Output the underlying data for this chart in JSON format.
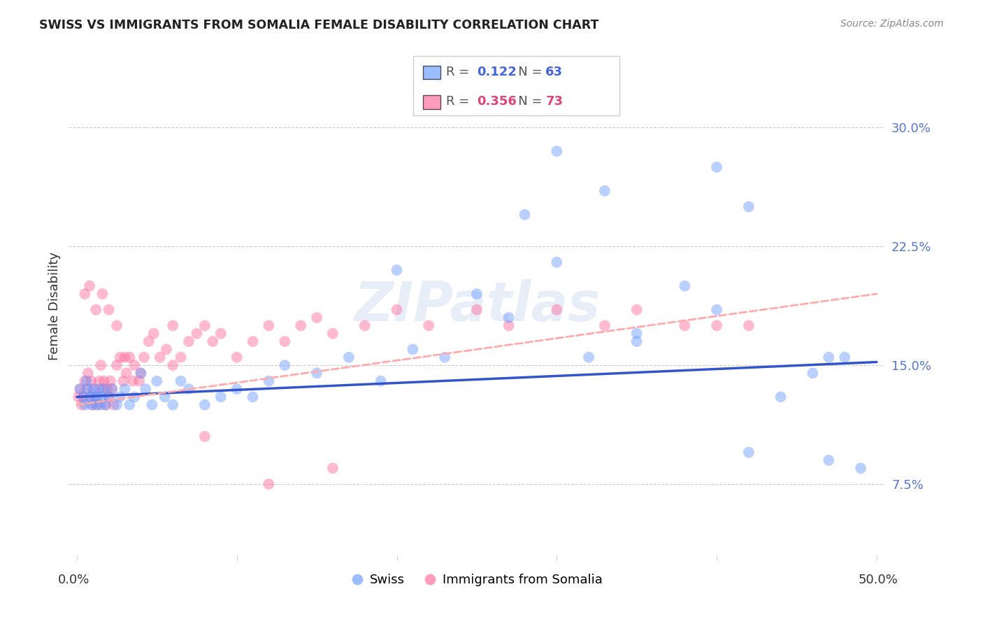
{
  "title": "SWISS VS IMMIGRANTS FROM SOMALIA FEMALE DISABILITY CORRELATION CHART",
  "source": "Source: ZipAtlas.com",
  "ylabel": "Female Disability",
  "ytick_values": [
    0.075,
    0.15,
    0.225,
    0.3
  ],
  "xlim": [
    0.0,
    0.5
  ],
  "ylim": [
    0.03,
    0.345
  ],
  "legend_swiss_R": "0.122",
  "legend_swiss_N": "63",
  "legend_somalia_R": "0.356",
  "legend_somalia_N": "73",
  "swiss_color": "#6699ff",
  "somalia_color": "#ff6699",
  "swiss_line_color": "#3355cc",
  "somalia_line_color": "#ffaaaa",
  "watermark": "ZIPatlas",
  "swiss_scatter_x": [
    0.002,
    0.004,
    0.005,
    0.006,
    0.007,
    0.008,
    0.009,
    0.01,
    0.011,
    0.012,
    0.013,
    0.014,
    0.015,
    0.016,
    0.017,
    0.018,
    0.02,
    0.022,
    0.025,
    0.027,
    0.03,
    0.033,
    0.036,
    0.04,
    0.043,
    0.047,
    0.05,
    0.055,
    0.06,
    0.065,
    0.07,
    0.08,
    0.09,
    0.1,
    0.11,
    0.12,
    0.13,
    0.15,
    0.17,
    0.19,
    0.21,
    0.23,
    0.25,
    0.27,
    0.3,
    0.32,
    0.35,
    0.38,
    0.4,
    0.42,
    0.44,
    0.46,
    0.48,
    0.33,
    0.2,
    0.28,
    0.35,
    0.42,
    0.47,
    0.49,
    0.3,
    0.4,
    0.47
  ],
  "swiss_scatter_y": [
    0.135,
    0.13,
    0.125,
    0.14,
    0.135,
    0.13,
    0.125,
    0.135,
    0.13,
    0.125,
    0.13,
    0.135,
    0.125,
    0.13,
    0.135,
    0.125,
    0.13,
    0.135,
    0.125,
    0.13,
    0.135,
    0.125,
    0.13,
    0.145,
    0.135,
    0.125,
    0.14,
    0.13,
    0.125,
    0.14,
    0.135,
    0.125,
    0.13,
    0.135,
    0.13,
    0.14,
    0.15,
    0.145,
    0.155,
    0.14,
    0.16,
    0.155,
    0.195,
    0.18,
    0.215,
    0.155,
    0.17,
    0.2,
    0.185,
    0.095,
    0.13,
    0.145,
    0.155,
    0.26,
    0.21,
    0.245,
    0.165,
    0.25,
    0.09,
    0.085,
    0.285,
    0.275,
    0.155
  ],
  "somalia_scatter_x": [
    0.001,
    0.002,
    0.003,
    0.004,
    0.005,
    0.006,
    0.007,
    0.008,
    0.009,
    0.01,
    0.011,
    0.012,
    0.013,
    0.014,
    0.015,
    0.016,
    0.017,
    0.018,
    0.019,
    0.02,
    0.021,
    0.022,
    0.023,
    0.025,
    0.027,
    0.029,
    0.031,
    0.033,
    0.036,
    0.039,
    0.042,
    0.045,
    0.048,
    0.052,
    0.056,
    0.06,
    0.065,
    0.07,
    0.075,
    0.08,
    0.085,
    0.09,
    0.1,
    0.11,
    0.12,
    0.13,
    0.14,
    0.15,
    0.16,
    0.18,
    0.2,
    0.22,
    0.25,
    0.27,
    0.3,
    0.33,
    0.35,
    0.38,
    0.4,
    0.42,
    0.005,
    0.008,
    0.012,
    0.016,
    0.02,
    0.025,
    0.03,
    0.035,
    0.04,
    0.06,
    0.08,
    0.12,
    0.16
  ],
  "somalia_scatter_y": [
    0.13,
    0.135,
    0.125,
    0.13,
    0.14,
    0.135,
    0.145,
    0.13,
    0.14,
    0.125,
    0.135,
    0.13,
    0.125,
    0.14,
    0.15,
    0.135,
    0.14,
    0.125,
    0.135,
    0.13,
    0.14,
    0.135,
    0.125,
    0.15,
    0.155,
    0.14,
    0.145,
    0.155,
    0.15,
    0.14,
    0.155,
    0.165,
    0.17,
    0.155,
    0.16,
    0.15,
    0.155,
    0.165,
    0.17,
    0.175,
    0.165,
    0.17,
    0.155,
    0.165,
    0.175,
    0.165,
    0.175,
    0.18,
    0.17,
    0.175,
    0.185,
    0.175,
    0.185,
    0.175,
    0.185,
    0.175,
    0.185,
    0.175,
    0.175,
    0.175,
    0.195,
    0.2,
    0.185,
    0.195,
    0.185,
    0.175,
    0.155,
    0.14,
    0.145,
    0.175,
    0.105,
    0.075,
    0.085
  ]
}
